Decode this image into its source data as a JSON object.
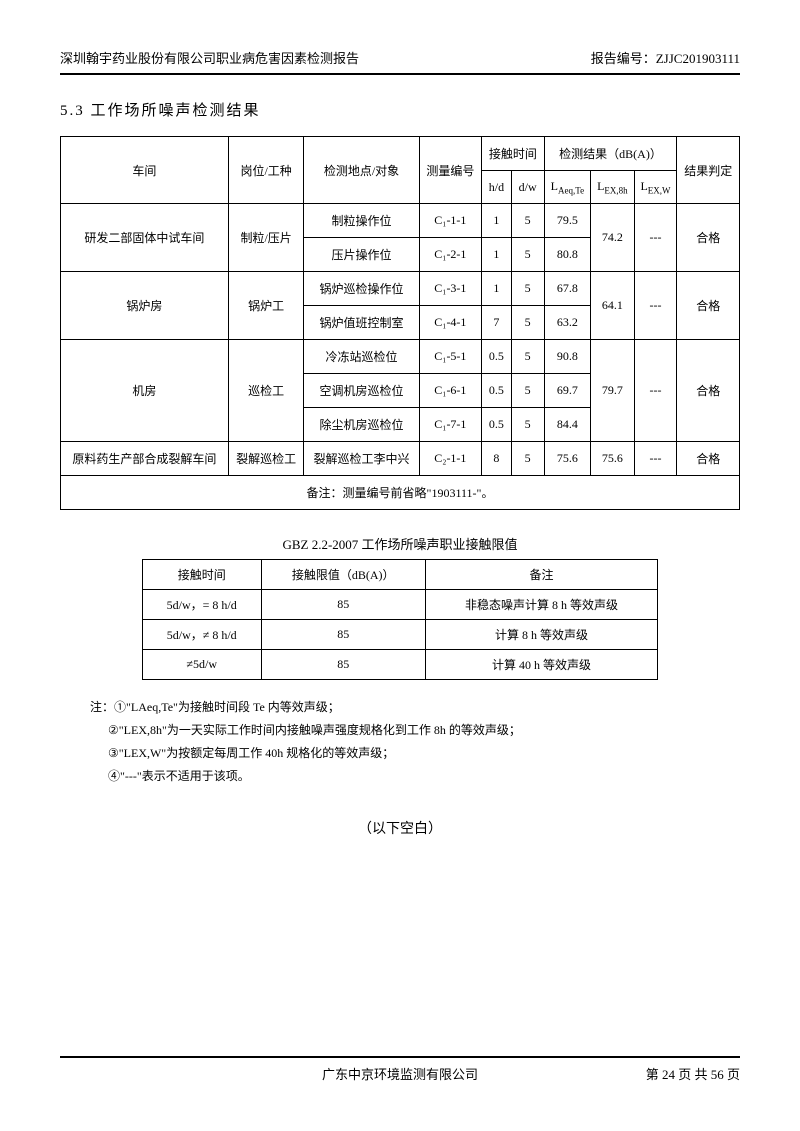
{
  "header": {
    "left": "深圳翰宇药业股份有限公司职业病危害因素检测报告",
    "right_label": "报告编号：",
    "right_value": "ZJJC201903111"
  },
  "section_title": "5.3 工作场所噪声检测结果",
  "main_table": {
    "headers": {
      "workshop": "车间",
      "position": "岗位/工种",
      "location": "检测地点/对象",
      "measure_id": "测量编号",
      "contact_time": "接触时间",
      "hd": "h/d",
      "dw": "d/w",
      "result": "检测结果（dB(A)）",
      "laeqte": "L",
      "laeqte_sub": "Aeq,Te",
      "lex8h": "L",
      "lex8h_sub": "EX,8h",
      "lexw": "L",
      "lexw_sub": "EX,W",
      "judge": "结果判定"
    },
    "groups": [
      {
        "workshop": "研发二部固体中试车间",
        "position": "制粒/压片",
        "rows": [
          {
            "location": "制粒操作位",
            "id": "C₁-1-1",
            "hd": "1",
            "dw": "5",
            "laeqte": "79.5"
          },
          {
            "location": "压片操作位",
            "id": "C₁-2-1",
            "hd": "1",
            "dw": "5",
            "laeqte": "80.8"
          }
        ],
        "lex8h": "74.2",
        "lexw": "---",
        "judge": "合格"
      },
      {
        "workshop": "锅炉房",
        "position": "锅炉工",
        "rows": [
          {
            "location": "锅炉巡检操作位",
            "id": "C₁-3-1",
            "hd": "1",
            "dw": "5",
            "laeqte": "67.8"
          },
          {
            "location": "锅炉值班控制室",
            "id": "C₁-4-1",
            "hd": "7",
            "dw": "5",
            "laeqte": "63.2"
          }
        ],
        "lex8h": "64.1",
        "lexw": "---",
        "judge": "合格"
      },
      {
        "workshop": "机房",
        "position": "巡检工",
        "rows": [
          {
            "location": "冷冻站巡检位",
            "id": "C₁-5-1",
            "hd": "0.5",
            "dw": "5",
            "laeqte": "90.8"
          },
          {
            "location": "空调机房巡检位",
            "id": "C₁-6-1",
            "hd": "0.5",
            "dw": "5",
            "laeqte": "69.7"
          },
          {
            "location": "除尘机房巡检位",
            "id": "C₁-7-1",
            "hd": "0.5",
            "dw": "5",
            "laeqte": "84.4"
          }
        ],
        "lex8h": "79.7",
        "lexw": "---",
        "judge": "合格"
      },
      {
        "workshop": "原料药生产部合成裂解车间",
        "position": "裂解巡检工",
        "rows": [
          {
            "location": "裂解巡检工李中兴",
            "id": "C₂-1-1",
            "hd": "8",
            "dw": "5",
            "laeqte": "75.6"
          }
        ],
        "lex8h": "75.6",
        "lexw": "---",
        "judge": "合格"
      }
    ],
    "note": "备注：测量编号前省略\"1903111-\"。"
  },
  "sub_table": {
    "caption": "GBZ 2.2-2007 工作场所噪声职业接触限值",
    "headers": {
      "contact": "接触时间",
      "limit": "接触限值（dB(A)）",
      "remark": "备注"
    },
    "rows": [
      {
        "contact": "5d/w，= 8 h/d",
        "limit": "85",
        "remark": "非稳态噪声计算 8 h 等效声级"
      },
      {
        "contact": "5d/w，≠ 8 h/d",
        "limit": "85",
        "remark": "计算 8 h 等效声级"
      },
      {
        "contact": "≠5d/w",
        "limit": "85",
        "remark": "计算 40 h 等效声级"
      }
    ]
  },
  "notes": {
    "prefix": "注：",
    "items": [
      "①\"LAeq,Te\"为接触时间段 Te 内等效声级；",
      "②\"LEX,8h\"为一天实际工作时间内接触噪声强度规格化到工作 8h 的等效声级；",
      "③\"LEX,W\"为按额定每周工作 40h 规格化的等效声级；",
      "④\"---\"表示不适用于该项。"
    ]
  },
  "blank_text": "（以下空白）",
  "footer": {
    "center": "广东中京环境监测有限公司",
    "right": "第 24 页 共 56 页"
  }
}
